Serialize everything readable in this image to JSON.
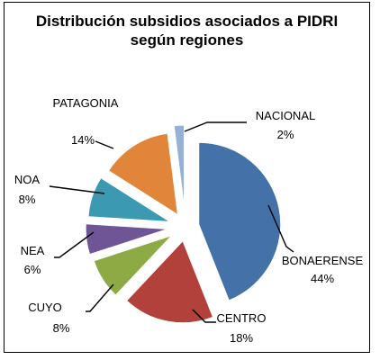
{
  "chart_data": {
    "type": "pie",
    "title_lines": [
      "Distribución  subsidios asociados a PIDRI",
      "según regiones"
    ],
    "slices": [
      {
        "name": "BONAERENSE",
        "value": 44,
        "label": "44%",
        "color": "#4472A8"
      },
      {
        "name": "CENTRO",
        "value": 18,
        "label": "18%",
        "color": "#B2413C"
      },
      {
        "name": "CUYO",
        "value": 8,
        "label": "8%",
        "color": "#8EAA45"
      },
      {
        "name": "NEA",
        "value": 6,
        "label": "6%",
        "color": "#6F5596"
      },
      {
        "name": "NOA",
        "value": 8,
        "label": "8%",
        "color": "#3B9AB1"
      },
      {
        "name": "PATAGONIA",
        "value": 14,
        "label": "14%",
        "color": "#E0853A"
      },
      {
        "name": "NACIONAL",
        "value": 2,
        "label": "2%",
        "color": "#97B0D6"
      }
    ],
    "exploded": true,
    "legend": "none"
  }
}
